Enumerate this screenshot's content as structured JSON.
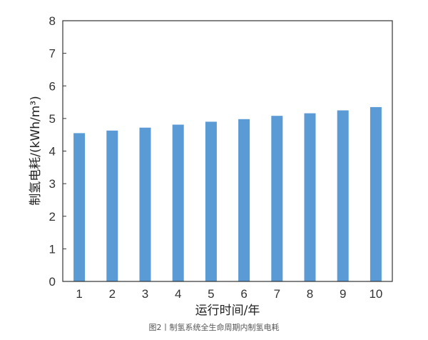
{
  "chart_data": {
    "type": "bar",
    "categories": [
      "1",
      "2",
      "3",
      "4",
      "5",
      "6",
      "7",
      "8",
      "9",
      "10"
    ],
    "values": [
      4.55,
      4.63,
      4.72,
      4.81,
      4.9,
      4.98,
      5.08,
      5.16,
      5.25,
      5.35
    ],
    "xlabel": "运行时间/年",
    "ylabel": "制氢电耗/(kWh/m³)",
    "ylim": [
      0,
      8
    ],
    "yticks": [
      0,
      1,
      2,
      3,
      4,
      5,
      6,
      7,
      8
    ],
    "grid": false,
    "bar_color": "#5b9bd5"
  },
  "caption": "图2丨制氢系统全生命周期内制氢电耗"
}
